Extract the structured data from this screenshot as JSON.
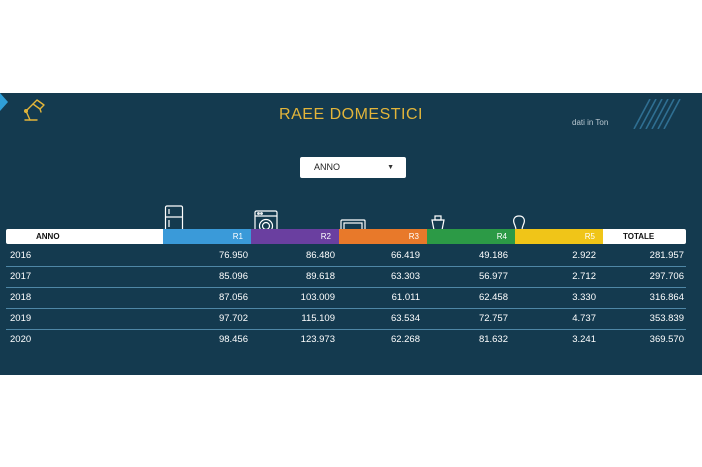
{
  "title": "RAEE DOMESTICI",
  "unit_note": "dati in Ton",
  "filter": {
    "label": "ANNO"
  },
  "colors": {
    "panel": "#143a4f",
    "title": "#e3b53a",
    "R1": "#3a9ad9",
    "R2": "#6a3fa0",
    "R3": "#e8792a",
    "R4": "#2c9a46",
    "R5": "#f0c518"
  },
  "icons": {
    "header": "desk-lamp-icon",
    "R1": "refrigerator-icon",
    "R2": "washing-machine-icon",
    "R3": "tv-monitor-icon",
    "R4": "small-appliance-icon",
    "R5": "light-bulb-icon"
  },
  "table": {
    "headers": {
      "anno": "ANNO",
      "r1": "R1",
      "r2": "R2",
      "r3": "R3",
      "r4": "R4",
      "r5": "R5",
      "totale": "TOTALE"
    },
    "rows": [
      {
        "anno": "2016",
        "r1": "76.950",
        "r2": "86.480",
        "r3": "66.419",
        "r4": "49.186",
        "r5": "2.922",
        "totale": "281.957"
      },
      {
        "anno": "2017",
        "r1": "85.096",
        "r2": "89.618",
        "r3": "63.303",
        "r4": "56.977",
        "r5": "2.712",
        "totale": "297.706"
      },
      {
        "anno": "2018",
        "r1": "87.056",
        "r2": "103.009",
        "r3": "61.011",
        "r4": "62.458",
        "r5": "3.330",
        "totale": "316.864"
      },
      {
        "anno": "2019",
        "r1": "97.702",
        "r2": "115.109",
        "r3": "63.534",
        "r4": "72.757",
        "r5": "4.737",
        "totale": "353.839"
      },
      {
        "anno": "2020",
        "r1": "98.456",
        "r2": "123.973",
        "r3": "62.268",
        "r4": "81.632",
        "r5": "3.241",
        "totale": "369.570"
      }
    ]
  }
}
